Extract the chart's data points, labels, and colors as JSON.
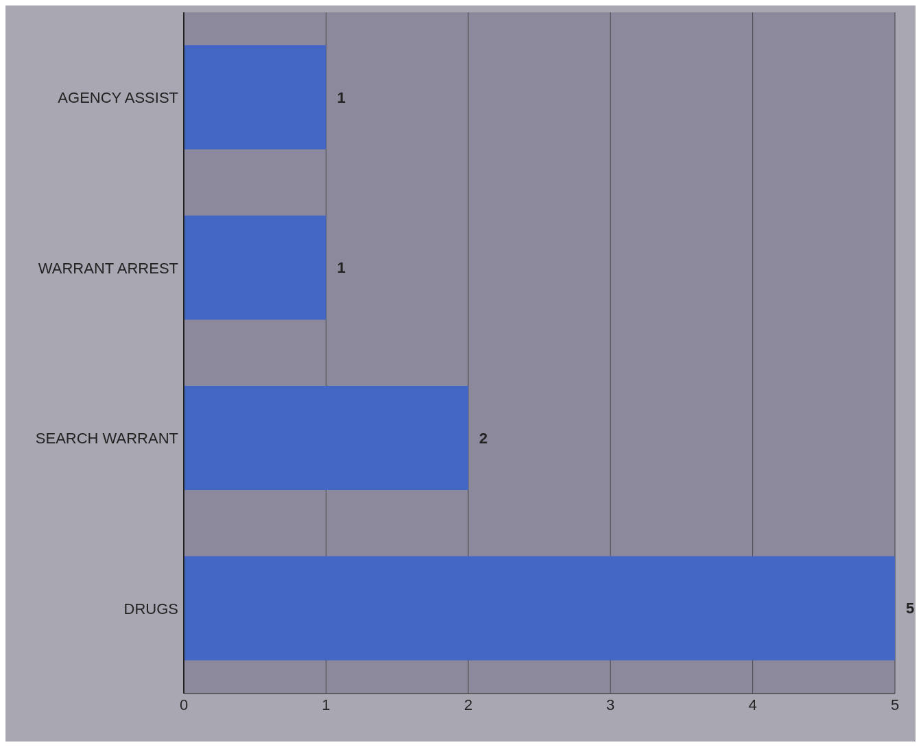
{
  "chart_data": {
    "type": "bar",
    "orientation": "horizontal",
    "categories": [
      "AGENCY ASSIST",
      "WARRANT ARREST",
      "SEARCH WARRANT",
      "DRUGS"
    ],
    "values": [
      1,
      1,
      2,
      5
    ],
    "color": "#4466c4",
    "xlim": [
      0,
      5
    ],
    "xticks": [
      0,
      1,
      2,
      3,
      4,
      5
    ],
    "grid": "x",
    "data_labels": true
  }
}
